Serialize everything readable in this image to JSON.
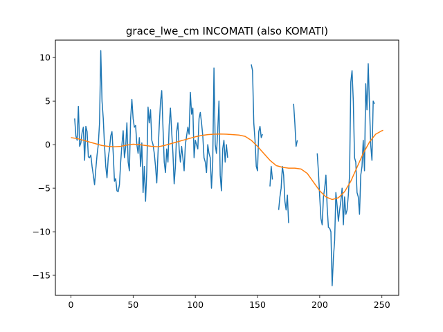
{
  "chart_data": {
    "type": "line",
    "title": "grace_lwe_cm INCOMATI (also KOMATI)",
    "xlabel": "",
    "ylabel": "",
    "xlim": [
      -12.5,
      263.5
    ],
    "ylim": [
      -17.3,
      12.0
    ],
    "xticks": [
      0,
      50,
      100,
      150,
      200,
      250
    ],
    "yticks": [
      -15,
      -10,
      -5,
      0,
      5,
      10
    ],
    "xtick_labels": [
      "0",
      "50",
      "100",
      "150",
      "200",
      "250"
    ],
    "ytick_labels": [
      "−15",
      "−10",
      "−5",
      "0",
      "5",
      "10"
    ],
    "grid": false,
    "legend": "none",
    "series": [
      {
        "color": "#1f77b4",
        "points": [
          [
            3,
            3.0
          ],
          [
            4,
            1.0
          ],
          [
            5,
            0.5
          ],
          [
            6,
            4.4
          ],
          [
            7,
            -0.2
          ],
          [
            8,
            0.2
          ],
          [
            9,
            1.4
          ],
          [
            10,
            2.0
          ],
          [
            11,
            -1.8
          ],
          [
            12,
            2.1
          ],
          [
            13,
            1.5
          ],
          [
            14,
            -1.4
          ],
          [
            15,
            -1.5
          ],
          [
            16,
            -1.2
          ],
          [
            17,
            -2.5
          ],
          [
            18,
            -3.5
          ],
          [
            19,
            -4.6
          ],
          [
            20,
            -2.8
          ],
          [
            21,
            -1.2
          ],
          [
            22,
            0.0
          ],
          [
            23,
            2.5
          ],
          [
            24,
            10.8
          ],
          [
            25,
            5.0
          ],
          [
            26,
            3.0
          ],
          [
            27,
            -0.1
          ],
          [
            28,
            -2.5
          ],
          [
            29,
            -3.8
          ],
          [
            30,
            -1.5
          ],
          [
            31,
            -0.5
          ],
          [
            32,
            1.0
          ],
          [
            33,
            1.5
          ],
          [
            34,
            -1.0
          ],
          [
            35,
            -4.2
          ],
          [
            36,
            -3.9
          ],
          [
            37,
            -5.3
          ],
          [
            38,
            -5.4
          ],
          [
            39,
            -4.6
          ],
          [
            40,
            -2.0
          ],
          [
            41,
            0.0
          ],
          [
            42,
            1.6
          ],
          [
            43,
            -1.5
          ],
          [
            44,
            -0.3
          ],
          [
            45,
            2.5
          ],
          [
            46,
            -2.0
          ],
          [
            47,
            -3.0
          ],
          [
            48,
            3.0
          ],
          [
            49,
            5.2
          ],
          [
            50,
            3.0
          ],
          [
            51,
            2.0
          ],
          [
            52,
            2.2
          ],
          [
            53,
            0.0
          ],
          [
            54,
            -1.0
          ],
          [
            55,
            0.8
          ],
          [
            56,
            -2.5
          ],
          [
            57,
            0.2
          ],
          [
            58,
            -5.5
          ],
          [
            59,
            -2.5
          ],
          [
            60,
            -6.5
          ],
          [
            61,
            -3.0
          ],
          [
            62,
            4.3
          ],
          [
            63,
            2.5
          ],
          [
            64,
            4.0
          ],
          [
            65,
            0.5
          ],
          [
            66,
            0.0
          ],
          [
            67,
            -1.0
          ],
          [
            68,
            -2.5
          ],
          [
            69,
            -4.4
          ],
          [
            70,
            -1.0
          ],
          [
            71,
            2.2
          ],
          [
            72,
            4.9
          ],
          [
            73,
            6.2
          ],
          [
            74,
            2.0
          ],
          [
            75,
            -2.0
          ],
          [
            76,
            -3.2
          ],
          [
            77,
            -0.5
          ],
          [
            78,
            -2.0
          ],
          [
            79,
            2.2
          ],
          [
            80,
            4.2
          ],
          [
            81,
            1.5
          ],
          [
            82,
            -1.0
          ],
          [
            83,
            -4.5
          ],
          [
            84,
            -2.5
          ],
          [
            85,
            1.5
          ],
          [
            86,
            2.5
          ],
          [
            87,
            -0.5
          ],
          [
            88,
            -2.0
          ],
          [
            89,
            -0.2
          ],
          [
            90,
            -1.5
          ],
          [
            91,
            -3.0
          ],
          [
            92,
            0.0
          ],
          [
            93,
            1.0
          ],
          [
            94,
            2.0
          ],
          [
            95,
            1.2
          ],
          [
            96,
            6.0
          ],
          [
            97,
            3.5
          ],
          [
            98,
            4.2
          ],
          [
            99,
            -1.5
          ],
          [
            100,
            0.5
          ],
          [
            101,
            0.0
          ],
          [
            102,
            -0.5
          ],
          [
            103,
            3.0
          ],
          [
            104,
            3.7
          ],
          [
            105,
            2.5
          ],
          [
            106,
            1.0
          ],
          [
            107,
            -1.5
          ],
          [
            108,
            -2.0
          ],
          [
            109,
            -3.2
          ],
          [
            110,
            0.0
          ],
          [
            111,
            -1.0
          ],
          [
            112,
            -1.5
          ],
          [
            113,
            -5.0
          ],
          [
            114,
            -2.0
          ],
          [
            115,
            8.8
          ],
          [
            116,
            0.0
          ],
          [
            117,
            -1.0
          ],
          [
            118,
            1.5
          ],
          [
            119,
            5.0
          ],
          [
            120,
            -3.5
          ],
          [
            121,
            -5.3
          ],
          [
            122,
            -0.5
          ],
          [
            123,
            0.5
          ],
          [
            124,
            -2.0
          ],
          [
            125,
            0.0
          ],
          [
            126,
            -1.5
          ]
        ]
      },
      {
        "color": "#1f77b4",
        "points": [
          [
            145,
            9.2
          ],
          [
            146,
            8.5
          ],
          [
            147,
            2.5
          ],
          [
            148,
            0.5
          ],
          [
            149,
            -2.5
          ],
          [
            150,
            -3.0
          ],
          [
            151,
            1.5
          ],
          [
            152,
            2.1
          ],
          [
            153,
            0.8
          ],
          [
            154,
            1.2
          ]
        ]
      },
      {
        "color": "#1f77b4",
        "points": [
          [
            160,
            -4.8
          ],
          [
            161,
            -2.5
          ],
          [
            162,
            -4.0
          ]
        ]
      },
      {
        "color": "#1f77b4",
        "points": [
          [
            167,
            -7.5
          ],
          [
            168,
            -6.0
          ],
          [
            169,
            -5.0
          ],
          [
            170,
            -2.5
          ],
          [
            171,
            -3.5
          ],
          [
            172,
            -6.5
          ],
          [
            173,
            -7.5
          ],
          [
            174,
            -5.8
          ],
          [
            175,
            -9.0
          ]
        ]
      },
      {
        "color": "#1f77b4",
        "points": [
          [
            179,
            4.7
          ],
          [
            180,
            2.5
          ],
          [
            181,
            -0.2
          ],
          [
            182,
            0.5
          ]
        ]
      },
      {
        "color": "#1f77b4",
        "points": [
          [
            198,
            -1.0
          ],
          [
            199,
            -3.2
          ],
          [
            200,
            -6.0
          ],
          [
            201,
            -8.5
          ],
          [
            202,
            -9.2
          ],
          [
            203,
            -6.0
          ],
          [
            204,
            -5.0
          ],
          [
            205,
            -3.5
          ],
          [
            206,
            -7.2
          ],
          [
            207,
            -9.5
          ],
          [
            208,
            -9.6
          ],
          [
            209,
            -10.0
          ],
          [
            210,
            -16.2
          ],
          [
            211,
            -13.0
          ],
          [
            212,
            -11.0
          ],
          [
            213,
            -5.5
          ],
          [
            214,
            -7.0
          ],
          [
            215,
            -8.8
          ],
          [
            216,
            -7.5
          ],
          [
            217,
            -6.5
          ],
          [
            218,
            -5.0
          ],
          [
            219,
            -9.2
          ],
          [
            220,
            -6.0
          ],
          [
            221,
            -8.0
          ],
          [
            222,
            -7.5
          ],
          [
            223,
            -5.8
          ],
          [
            224,
            -3.5
          ],
          [
            225,
            7.2
          ],
          [
            226,
            8.5
          ],
          [
            227,
            5.0
          ],
          [
            228,
            -1.5
          ],
          [
            229,
            -2.0
          ],
          [
            230,
            -5.5
          ],
          [
            231,
            -6.0
          ],
          [
            232,
            -8.0
          ],
          [
            233,
            -3.5
          ],
          [
            234,
            -2.5
          ],
          [
            235,
            0.5
          ],
          [
            236,
            -3.0
          ],
          [
            237,
            7.0
          ],
          [
            238,
            4.0
          ],
          [
            239,
            9.3
          ],
          [
            240,
            4.5
          ],
          [
            241,
            0.0
          ],
          [
            242,
            -1.8
          ],
          [
            243,
            5.0
          ],
          [
            244,
            4.7
          ]
        ]
      },
      {
        "color": "#ff7f0e",
        "points": [
          [
            0,
            0.8
          ],
          [
            5,
            0.7
          ],
          [
            10,
            0.5
          ],
          [
            15,
            0.3
          ],
          [
            20,
            0.1
          ],
          [
            25,
            -0.1
          ],
          [
            30,
            -0.2
          ],
          [
            35,
            -0.25
          ],
          [
            40,
            -0.2
          ],
          [
            45,
            -0.05
          ],
          [
            50,
            0.05
          ],
          [
            55,
            0.0
          ],
          [
            60,
            -0.1
          ],
          [
            65,
            -0.2
          ],
          [
            70,
            -0.25
          ],
          [
            75,
            -0.1
          ],
          [
            80,
            0.1
          ],
          [
            85,
            0.3
          ],
          [
            90,
            0.5
          ],
          [
            95,
            0.7
          ],
          [
            100,
            0.9
          ],
          [
            105,
            1.05
          ],
          [
            110,
            1.15
          ],
          [
            115,
            1.2
          ],
          [
            120,
            1.22
          ],
          [
            125,
            1.2
          ],
          [
            130,
            1.15
          ],
          [
            135,
            1.1
          ],
          [
            140,
            0.95
          ],
          [
            145,
            0.5
          ],
          [
            150,
            -0.2
          ],
          [
            155,
            -1.0
          ],
          [
            160,
            -1.8
          ],
          [
            165,
            -2.4
          ],
          [
            170,
            -2.6
          ],
          [
            175,
            -2.7
          ],
          [
            180,
            -2.7
          ],
          [
            185,
            -2.8
          ],
          [
            190,
            -3.3
          ],
          [
            195,
            -4.3
          ],
          [
            200,
            -5.3
          ],
          [
            205,
            -6.0
          ],
          [
            210,
            -6.3
          ],
          [
            215,
            -6.1
          ],
          [
            220,
            -5.4
          ],
          [
            225,
            -4.2
          ],
          [
            230,
            -2.6
          ],
          [
            235,
            -1.0
          ],
          [
            240,
            0.3
          ],
          [
            245,
            1.2
          ],
          [
            250,
            1.6
          ],
          [
            251,
            1.65
          ]
        ]
      }
    ]
  }
}
